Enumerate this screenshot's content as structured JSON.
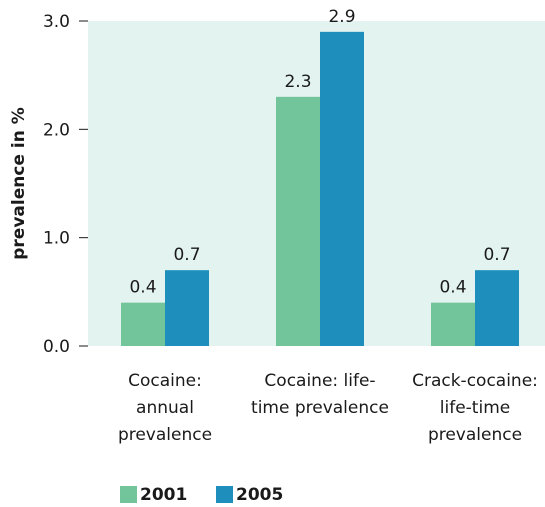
{
  "chart_data": {
    "type": "bar",
    "title": "",
    "xlabel": "",
    "ylabel": "prevalence in %",
    "ylim": [
      0,
      3.0
    ],
    "yticks": [
      "0.0",
      "1.0",
      "2.0",
      "3.0"
    ],
    "ytick_values": [
      0,
      1,
      2,
      3
    ],
    "grid": false,
    "legend_position": "bottom-left",
    "categories": [
      [
        "Cocaine:",
        "annual",
        "prevalence"
      ],
      [
        "Cocaine: life-",
        "time prevalence"
      ],
      [
        "Crack-cocaine:",
        "life-time",
        "prevalence"
      ]
    ],
    "series": [
      {
        "name": "2001",
        "color": "#72c59b",
        "values": [
          0.4,
          2.3,
          0.4
        ],
        "labels": [
          "0.4",
          "2.3",
          "0.4"
        ]
      },
      {
        "name": "2005",
        "color": "#1e8fbd",
        "values": [
          0.7,
          2.9,
          0.7
        ],
        "labels": [
          "0.7",
          "2.9",
          "0.7"
        ]
      }
    ],
    "plot_background": "#e3f3ef"
  }
}
